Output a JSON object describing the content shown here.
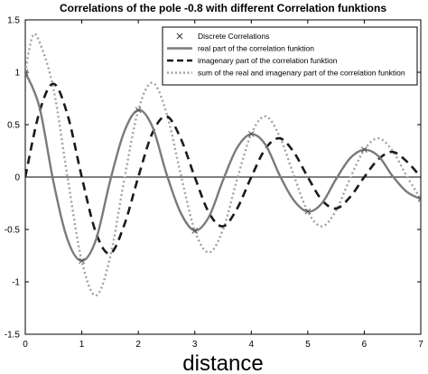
{
  "chart_data": {
    "type": "line",
    "title": "Correlations of the pole -0.8 with different Correlation funktions",
    "xlabel": "distance",
    "ylabel": "",
    "xlim": [
      0,
      7
    ],
    "ylim": [
      -1.5,
      1.5
    ],
    "xticks": [
      0,
      1,
      2,
      3,
      4,
      5,
      6,
      7
    ],
    "yticks": [
      -1.5,
      -1,
      -0.5,
      0,
      0.5,
      1,
      1.5
    ],
    "ytick_labels": [
      "-1.5",
      "-1",
      "-0.5",
      "0",
      "0.5",
      "1",
      "1.5"
    ],
    "legend_position": "top-right",
    "reference_line_y": 0,
    "series": [
      {
        "name": "Discrete Correlations",
        "style": "markers",
        "marker": "x",
        "color": "#555555",
        "x": [
          0,
          1,
          2,
          3,
          4,
          5,
          6,
          7
        ],
        "y": [
          1.0,
          -0.8,
          0.64,
          -0.512,
          0.41,
          -0.328,
          0.262,
          -0.21
        ]
      },
      {
        "name": "real part of the correlation funktion",
        "style": "solid",
        "color": "#7a7a7a",
        "x": [
          0,
          0.25,
          0.5,
          0.75,
          1,
          1.25,
          1.5,
          1.75,
          2,
          2.25,
          2.5,
          2.75,
          3,
          3.25,
          3.5,
          3.75,
          4,
          4.25,
          4.5,
          4.75,
          5,
          5.25,
          5.5,
          5.75,
          6,
          6.25,
          6.5,
          6.75,
          7
        ],
        "y": [
          1.0,
          0.67,
          -0.05,
          -0.6,
          -0.8,
          -0.6,
          -0.04,
          0.43,
          0.64,
          0.48,
          0.03,
          -0.34,
          -0.51,
          -0.38,
          -0.03,
          0.28,
          0.41,
          0.31,
          0.02,
          -0.22,
          -0.33,
          -0.25,
          -0.02,
          0.18,
          0.26,
          0.2,
          0.01,
          -0.14,
          -0.21
        ]
      },
      {
        "name": "imagenary part of the correlation funktion",
        "style": "dashed",
        "color": "#1a1a1a",
        "x": [
          0,
          0.25,
          0.5,
          0.75,
          1,
          1.25,
          1.5,
          1.75,
          2,
          2.25,
          2.5,
          2.75,
          3,
          3.25,
          3.5,
          3.75,
          4,
          4.25,
          4.5,
          4.75,
          5,
          5.25,
          5.5,
          5.75,
          6,
          6.25,
          6.5,
          6.75,
          7
        ],
        "y": [
          0.0,
          0.62,
          0.89,
          0.59,
          0.0,
          -0.53,
          -0.73,
          -0.46,
          0.0,
          0.42,
          0.58,
          0.37,
          0.0,
          -0.34,
          -0.47,
          -0.3,
          0.0,
          0.27,
          0.37,
          0.24,
          0.0,
          -0.22,
          -0.3,
          -0.19,
          0.0,
          0.17,
          0.24,
          0.15,
          0.0
        ]
      },
      {
        "name": "sum of the real and imagenary part of the correlation funktion",
        "style": "dotted",
        "color": "#a0a0a0",
        "x": [
          0,
          0.125,
          0.25,
          0.5,
          0.75,
          1,
          1.25,
          1.5,
          1.75,
          2,
          2.25,
          2.5,
          2.75,
          3,
          3.25,
          3.5,
          3.75,
          4,
          4.25,
          4.5,
          4.75,
          5,
          5.25,
          5.5,
          5.75,
          6,
          6.25,
          6.5,
          6.75,
          7
        ],
        "y": [
          1.0,
          1.34,
          1.29,
          0.84,
          -0.01,
          -0.8,
          -1.13,
          -0.77,
          -0.03,
          0.64,
          0.9,
          0.61,
          0.03,
          -0.51,
          -0.72,
          -0.5,
          -0.02,
          0.41,
          0.58,
          0.39,
          0.02,
          -0.33,
          -0.47,
          -0.32,
          -0.01,
          0.26,
          0.37,
          0.25,
          0.01,
          -0.21
        ]
      }
    ]
  }
}
